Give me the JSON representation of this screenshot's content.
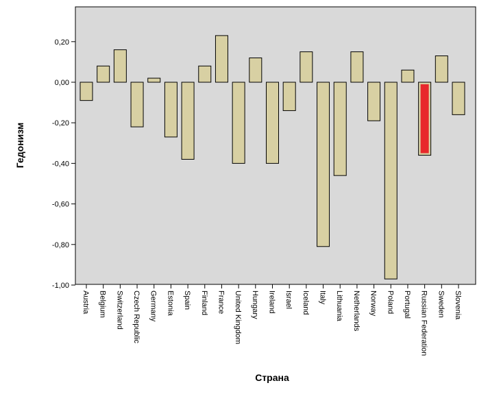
{
  "chart_data": {
    "type": "bar",
    "xlabel": "Страна",
    "ylabel": "Гедонизм",
    "ylim": [
      -1.0,
      0.3
    ],
    "yticks": [
      "0,20",
      "0,00",
      "-0,20",
      "-0,40",
      "-0,60",
      "-0,80",
      "-1,00"
    ],
    "ytick_values": [
      0.2,
      0.0,
      -0.2,
      -0.4,
      -0.6,
      -0.8,
      -1.0
    ],
    "grid": false,
    "categories": [
      "Austria",
      "Belgium",
      "Switzerland",
      "Czech Republic",
      "Germany",
      "Estonia",
      "Spain",
      "Finland",
      "France",
      "United Kingdom",
      "Hungary",
      "Ireland",
      "Israel",
      "Iceland",
      "Italy",
      "Lithuania",
      "Netherlands",
      "Norway",
      "Poland",
      "Portugal",
      "Russian Federation",
      "Sweden",
      "Slovenia"
    ],
    "values": [
      -0.09,
      0.08,
      0.16,
      -0.22,
      0.02,
      -0.27,
      -0.38,
      0.08,
      0.23,
      -0.4,
      0.12,
      -0.4,
      -0.14,
      0.15,
      -0.81,
      -0.46,
      0.15,
      -0.19,
      -0.97,
      0.06,
      -0.36,
      0.13,
      -0.16
    ],
    "highlight_category": "Russian Federation",
    "colors": {
      "bar_fill": "#D8D0A3",
      "highlight_fill": "#E8282B",
      "plot_background": "#D9D9D9",
      "bar_stroke": "#000000"
    }
  }
}
